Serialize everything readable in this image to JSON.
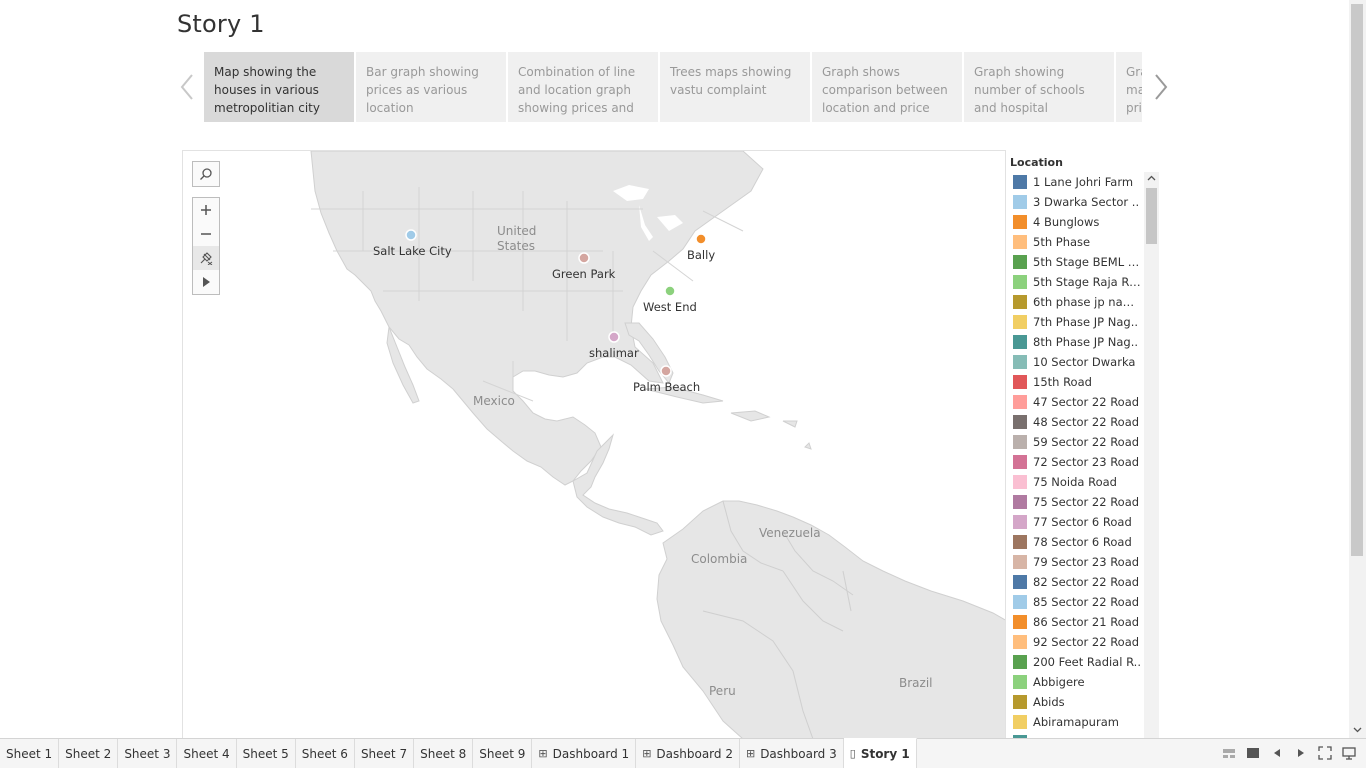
{
  "story": {
    "title": "Story 1"
  },
  "storypoints": [
    {
      "label": "Map showing the houses in various metropolitian city",
      "active": true
    },
    {
      "label": "Bar graph showing prices as various location",
      "active": false
    },
    {
      "label": "Combination of line and location graph showing prices and",
      "active": false
    },
    {
      "label": "Trees maps showing vastu complaint",
      "active": false
    },
    {
      "label": "Graph shows comparison between location and price",
      "active": false
    },
    {
      "label": "Graph showing number of schools and hospital",
      "active": false
    },
    {
      "label": "Gra ma pric",
      "active": false
    }
  ],
  "map": {
    "region_labels": {
      "us": "United States",
      "mexico": "Mexico",
      "venezuela": "Venezuela",
      "colombia": "Colombia",
      "peru": "Peru",
      "brazil": "Brazil"
    },
    "points": [
      {
        "name": "Salt Lake City",
        "color": "#a0cbe8"
      },
      {
        "name": "Green Park",
        "color": "#d4a6a0"
      },
      {
        "name": "Bally",
        "color": "#f28e2b"
      },
      {
        "name": "West End",
        "color": "#8cd17d"
      },
      {
        "name": "shalimar",
        "color": "#d4a6c8"
      },
      {
        "name": "Palm Beach",
        "color": "#d4a6a0"
      }
    ]
  },
  "legend": {
    "title": "Location",
    "items": [
      {
        "label": "1 Lane Johri Farm",
        "color": "#4e79a7"
      },
      {
        "label": "3 Dwarka Sector ..",
        "color": "#a0cbe8"
      },
      {
        "label": "4 Bunglows",
        "color": "#f28e2b"
      },
      {
        "label": "5th Phase",
        "color": "#ffbe7d"
      },
      {
        "label": "5th Stage BEML L..",
        "color": "#59a14f"
      },
      {
        "label": "5th Stage Raja Ra..",
        "color": "#8cd17d"
      },
      {
        "label": "6th phase jp nagar",
        "color": "#b6992d"
      },
      {
        "label": "7th Phase JP Nag..",
        "color": "#f1ce63"
      },
      {
        "label": "8th Phase JP Nag..",
        "color": "#499894"
      },
      {
        "label": "10 Sector Dwarka",
        "color": "#86bcb6"
      },
      {
        "label": "15th Road",
        "color": "#e15759"
      },
      {
        "label": "47 Sector 22 Road",
        "color": "#ff9d9a"
      },
      {
        "label": "48 Sector 22 Road",
        "color": "#79706e"
      },
      {
        "label": "59 Sector 22 Road",
        "color": "#bab0ac"
      },
      {
        "label": "72 Sector 23 Road",
        "color": "#d37295"
      },
      {
        "label": "75 Noida Road",
        "color": "#fabfd2"
      },
      {
        "label": "75 Sector 22 Road",
        "color": "#b07aa1"
      },
      {
        "label": "77 Sector 6 Road",
        "color": "#d4a6c8"
      },
      {
        "label": "78 Sector 6 Road",
        "color": "#9d7660"
      },
      {
        "label": "79 Sector 23 Road",
        "color": "#d7b5a6"
      },
      {
        "label": "82 Sector 22 Road",
        "color": "#4e79a7"
      },
      {
        "label": "85 Sector 22 Road",
        "color": "#a0cbe8"
      },
      {
        "label": "86 Sector 21 Road",
        "color": "#f28e2b"
      },
      {
        "label": "92 Sector 22 Road",
        "color": "#ffbe7d"
      },
      {
        "label": "200 Feet Radial R..",
        "color": "#59a14f"
      },
      {
        "label": "Abbigere",
        "color": "#8cd17d"
      },
      {
        "label": "Abids",
        "color": "#b6992d"
      },
      {
        "label": "Abiramapuram",
        "color": "#f1ce63"
      },
      {
        "label": "",
        "color": "#499894"
      }
    ]
  },
  "tabs": [
    {
      "label": "Sheet 1",
      "icon": "",
      "active": false
    },
    {
      "label": "Sheet 2",
      "icon": "",
      "active": false
    },
    {
      "label": "Sheet 3",
      "icon": "",
      "active": false
    },
    {
      "label": "Sheet 4",
      "icon": "",
      "active": false
    },
    {
      "label": "Sheet 5",
      "icon": "",
      "active": false
    },
    {
      "label": "Sheet 6",
      "icon": "",
      "active": false
    },
    {
      "label": "Sheet 7",
      "icon": "",
      "active": false
    },
    {
      "label": "Sheet 8",
      "icon": "",
      "active": false
    },
    {
      "label": "Sheet 9",
      "icon": "",
      "active": false
    },
    {
      "label": "Dashboard 1",
      "icon": "dashboard-icon",
      "active": false
    },
    {
      "label": "Dashboard 2",
      "icon": "dashboard-icon",
      "active": false
    },
    {
      "label": "Dashboard 3",
      "icon": "dashboard-icon",
      "active": false
    },
    {
      "label": "Story 1",
      "icon": "story-icon",
      "active": true
    }
  ]
}
